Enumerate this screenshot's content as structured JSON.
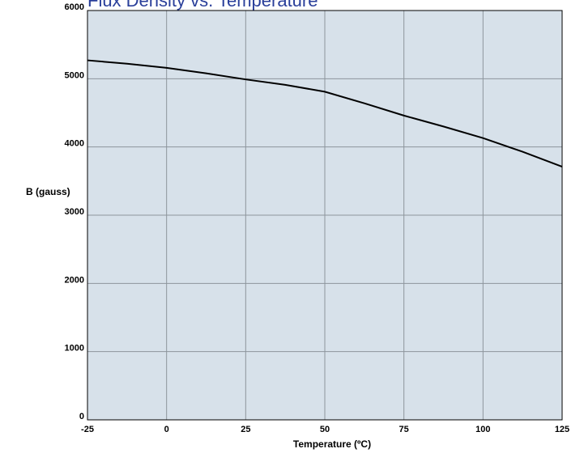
{
  "chart_data": {
    "type": "line",
    "title": "Flux Density vs. Temperature",
    "xlabel": "Temperature (ºC)",
    "ylabel": "B (gauss)",
    "xlim": [
      -25,
      125
    ],
    "ylim": [
      0,
      6000
    ],
    "x_ticks": [
      -25,
      0,
      25,
      50,
      75,
      100,
      125
    ],
    "y_ticks": [
      0,
      1000,
      2000,
      3000,
      4000,
      5000,
      6000
    ],
    "grid": true,
    "legend": "none",
    "colors": {
      "plot_background": "#d7e1ea",
      "grid": "#8d959c",
      "line": "#000000",
      "title": "#2a3f9a"
    },
    "series": [
      {
        "x": [
          -25,
          -12.5,
          0,
          12.5,
          25,
          37.5,
          50,
          62.5,
          75,
          87.5,
          100,
          112.5,
          125
        ],
        "y": [
          5270,
          5220,
          5160,
          5080,
          4990,
          4910,
          4810,
          4640,
          4460,
          4300,
          4130,
          3930,
          3710
        ]
      }
    ]
  }
}
